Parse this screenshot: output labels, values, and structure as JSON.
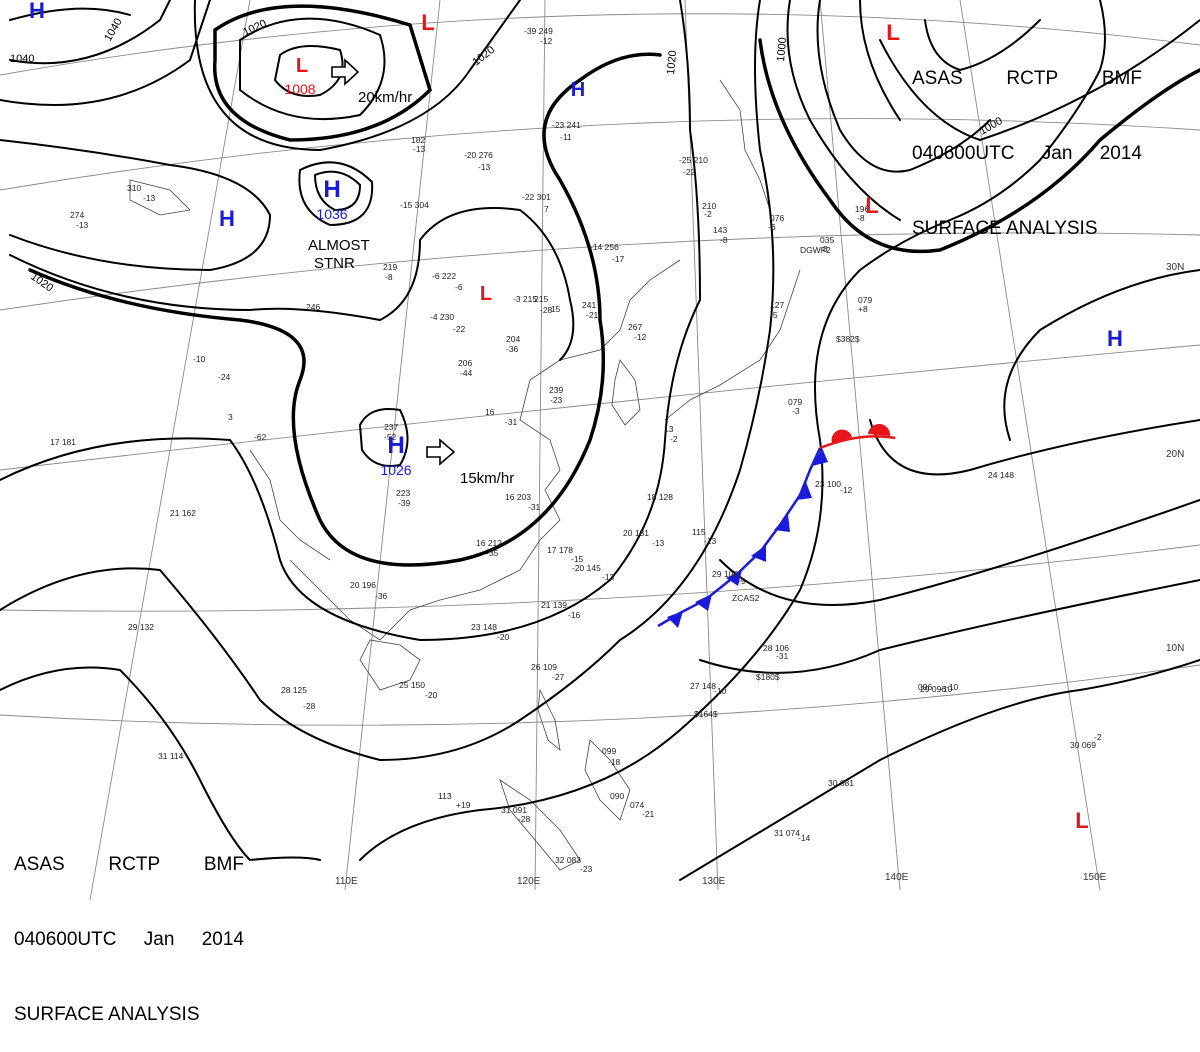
{
  "header": {
    "agency": "ASAS",
    "station": "RCTP",
    "office": "BMF",
    "datetime": "040600UTC",
    "month": "Jan",
    "year": "2014",
    "product": "SURFACE ANALYSIS"
  },
  "colors": {
    "high": "#1a1adb",
    "low": "#e8141a",
    "cold_front": "#1a1adb",
    "warm_front": "#e8141a",
    "isobar": "#000000",
    "grid": "#777777"
  },
  "lon_labels": [
    "110E",
    "120E",
    "130E",
    "140E",
    "150E"
  ],
  "lat_labels": [
    "30N",
    "20N",
    "10N"
  ],
  "isobar_labels": [
    "1040",
    "1040",
    "1020",
    "1020",
    "1020",
    "1020",
    "1000",
    "1000"
  ],
  "pressure_centers": [
    {
      "type": "H",
      "value": "1036"
    },
    {
      "type": "H",
      "value": "1026"
    },
    {
      "type": "L",
      "value": "1008"
    },
    {
      "type": "H",
      "value": ""
    },
    {
      "type": "H",
      "value": ""
    },
    {
      "type": "H",
      "value": ""
    },
    {
      "type": "H",
      "value": ""
    },
    {
      "type": "L",
      "value": ""
    },
    {
      "type": "L",
      "value": ""
    },
    {
      "type": "L",
      "value": ""
    },
    {
      "type": "L",
      "value": ""
    },
    {
      "type": "L",
      "value": ""
    }
  ],
  "annotations": {
    "motion_1": "20km/hr",
    "motion_2": "15km/hr",
    "stationary_1": "ALMOST",
    "stationary_2": "STNR"
  },
  "station_labels": [
    "-39 249",
    "-12",
    "-23 241",
    "-11",
    "-20 276",
    "-13",
    "-22 301",
    "7",
    "-25 210",
    "-22",
    "-14 256",
    "-17",
    "-15 304",
    "-6 222",
    "-6",
    "-3 215",
    "-28",
    "241",
    "-21",
    "-4 230",
    "-22",
    "204",
    "-36",
    "206",
    "-44",
    "-10",
    "-24",
    "3",
    "-62",
    "17 181",
    "16",
    "-31",
    "239",
    "-23",
    "237",
    "-52",
    "223",
    "-39",
    "16 203",
    "-31",
    "21 162",
    "17 178",
    "-15",
    "-20 145",
    "-13",
    "16 212",
    "-35",
    "20 196",
    "-36",
    "21 139",
    "-16",
    "23 148",
    "-20",
    "25 150",
    "-20",
    "28 125",
    "-28",
    "29 132",
    "26 109",
    "-27",
    "28 106",
    "-31",
    "27 148",
    "-10",
    "29 108",
    "-9",
    "20 131",
    "-13",
    "115",
    "-13",
    "18 128",
    "23 100",
    "-12",
    "24 148",
    "29 096",
    "-10",
    "30 069",
    "-2",
    "30 081",
    "099",
    "-18",
    "113",
    "+19",
    "31 091",
    "-28",
    "31 114",
    "31 074",
    "-14",
    "32 083",
    "-23",
    "090",
    "074",
    "-21",
    "$180$",
    "$164$",
    "$382$",
    "ZCAS2",
    "DGWF2",
    "310",
    "-13",
    "274",
    "-13",
    "219",
    "-8",
    "246",
    "267",
    "-12",
    "215",
    "-15",
    "079",
    "-3",
    "096",
    "-10",
    "127",
    "-5",
    "143",
    "-8",
    "076",
    "-6",
    "035",
    "-8",
    "079",
    "+8",
    "196",
    "-8",
    "182",
    "-13",
    "210",
    "-2",
    "13",
    "-2"
  ]
}
